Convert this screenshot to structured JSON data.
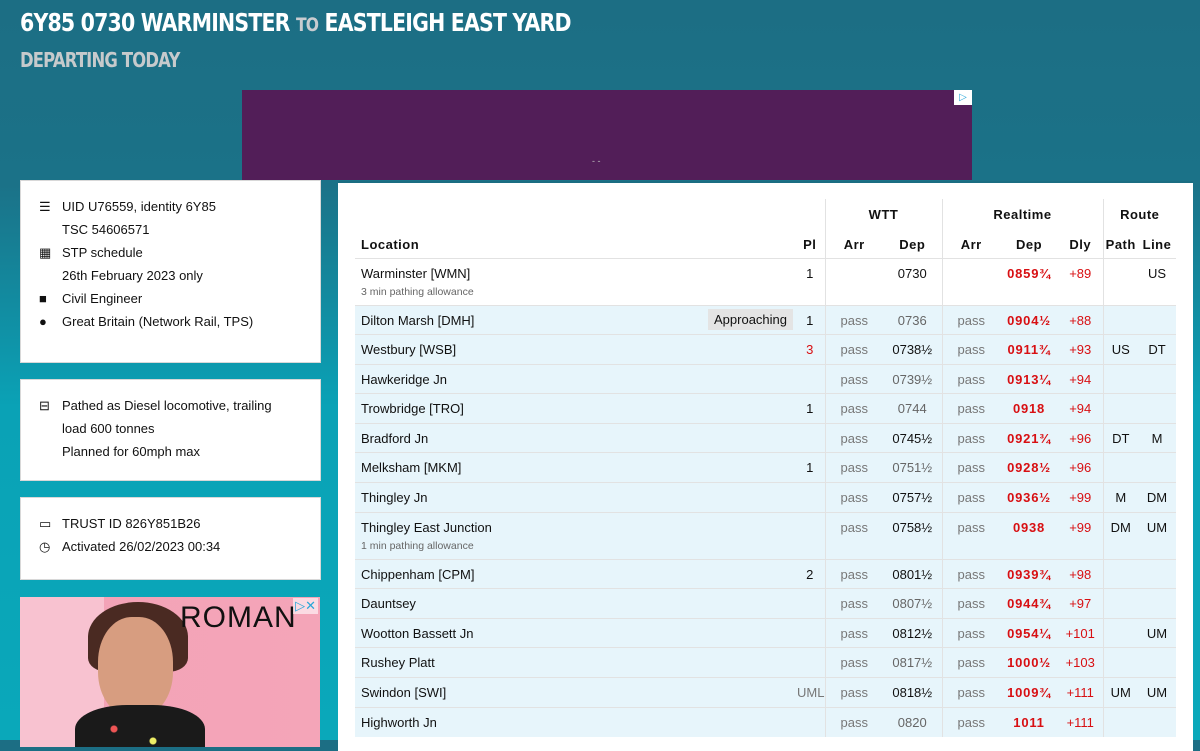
{
  "header": {
    "title_main": "6Y85 0730 WARMINSTER",
    "title_to": "TO",
    "title_dest": "EASTLEIGH EAST YARD",
    "subtitle": "DEPARTING TODAY"
  },
  "info": {
    "uid": "UID U76559, identity 6Y85",
    "tsc": "TSC 54606571",
    "stp": "STP schedule",
    "date": "26th February 2023 only",
    "sector": "Civil Engineer",
    "network": "Great Britain (Network Rail, TPS)",
    "pathed": "Pathed as Diesel locomotive, trailing",
    "load": "load 600 tonnes",
    "speed": "Planned for 60mph max",
    "trust": "TRUST ID 826Y851B26",
    "activated": "Activated 26/02/2023 00:34"
  },
  "ads": {
    "brand": "ROMAN"
  },
  "table": {
    "group_headers": {
      "wtt": "WTT",
      "realtime": "Realtime",
      "route": "Route"
    },
    "columns": {
      "location": "Location",
      "pl": "Pl",
      "arr": "Arr",
      "dep": "Dep",
      "rt_arr": "Arr",
      "rt_dep": "Dep",
      "dly": "Dly",
      "path": "Path",
      "line": "Line"
    },
    "rows": [
      {
        "location": "Warminster [WMN]",
        "note": "3 min pathing allowance",
        "pl": "1",
        "arr": "",
        "dep": "0730",
        "dep_timing": true,
        "rt_arr": "",
        "rt_dep": "0859¾",
        "dly": "+89",
        "path": "",
        "line": "US"
      },
      {
        "location": "Dilton Marsh [DMH]",
        "badge": "Approaching",
        "pl": "1",
        "arr": "pass",
        "dep": "0736",
        "dep_timing": false,
        "rt_arr": "pass",
        "rt_dep": "0904½",
        "dly": "+88",
        "path": "",
        "line": ""
      },
      {
        "location": "Westbury [WSB]",
        "pl": "3",
        "pl_changed": true,
        "arr": "pass",
        "dep": "0738½",
        "dep_timing": true,
        "rt_arr": "pass",
        "rt_dep": "0911¾",
        "dly": "+93",
        "path": "US",
        "line": "DT"
      },
      {
        "location": "Hawkeridge Jn",
        "pl": "",
        "arr": "pass",
        "dep": "0739½",
        "dep_timing": false,
        "rt_arr": "pass",
        "rt_dep": "0913¼",
        "dly": "+94",
        "path": "",
        "line": ""
      },
      {
        "location": "Trowbridge [TRO]",
        "pl": "1",
        "arr": "pass",
        "dep": "0744",
        "dep_timing": false,
        "rt_arr": "pass",
        "rt_dep": "0918",
        "dly": "+94",
        "path": "",
        "line": ""
      },
      {
        "location": "Bradford Jn",
        "pl": "",
        "arr": "pass",
        "dep": "0745½",
        "dep_timing": true,
        "rt_arr": "pass",
        "rt_dep": "0921¾",
        "dly": "+96",
        "path": "DT",
        "line": "M"
      },
      {
        "location": "Melksham [MKM]",
        "pl": "1",
        "arr": "pass",
        "dep": "0751½",
        "dep_timing": false,
        "rt_arr": "pass",
        "rt_dep": "0928½",
        "dly": "+96",
        "path": "",
        "line": ""
      },
      {
        "location": "Thingley Jn",
        "pl": "",
        "arr": "pass",
        "dep": "0757½",
        "dep_timing": true,
        "rt_arr": "pass",
        "rt_dep": "0936½",
        "dly": "+99",
        "path": "M",
        "line": "DM"
      },
      {
        "location": "Thingley East Junction",
        "note": "1 min pathing allowance",
        "pl": "",
        "arr": "pass",
        "dep": "0758½",
        "dep_timing": true,
        "rt_arr": "pass",
        "rt_dep": "0938",
        "dly": "+99",
        "path": "DM",
        "line": "UM"
      },
      {
        "location": "Chippenham [CPM]",
        "pl": "2",
        "arr": "pass",
        "dep": "0801½",
        "dep_timing": true,
        "rt_arr": "pass",
        "rt_dep": "0939¾",
        "dly": "+98",
        "path": "",
        "line": ""
      },
      {
        "location": "Dauntsey",
        "pl": "",
        "arr": "pass",
        "dep": "0807½",
        "dep_timing": false,
        "rt_arr": "pass",
        "rt_dep": "0944¾",
        "dly": "+97",
        "path": "",
        "line": ""
      },
      {
        "location": "Wootton Bassett Jn",
        "pl": "",
        "arr": "pass",
        "dep": "0812½",
        "dep_timing": true,
        "rt_arr": "pass",
        "rt_dep": "0954¼",
        "dly": "+101",
        "path": "",
        "line": "UM"
      },
      {
        "location": "Rushey Platt",
        "pl": "",
        "arr": "pass",
        "dep": "0817½",
        "dep_timing": false,
        "rt_arr": "pass",
        "rt_dep": "1000½",
        "dly": "+103",
        "path": "",
        "line": ""
      },
      {
        "location": "Swindon [SWI]",
        "pl": "UML",
        "pl_code": true,
        "arr": "pass",
        "dep": "0818½",
        "dep_timing": true,
        "rt_arr": "pass",
        "rt_dep": "1009¾",
        "dly": "+111",
        "path": "UM",
        "line": "UM"
      },
      {
        "location": "Highworth Jn",
        "pl": "",
        "arr": "pass",
        "dep": "0820",
        "dep_timing": false,
        "rt_arr": "pass",
        "rt_dep": "1011",
        "dly": "+111",
        "path": "",
        "line": ""
      }
    ]
  },
  "colors": {
    "background": "#1b7288",
    "delay": "#d80f12",
    "row_highlight": "#e7f5fb",
    "ad_purple": "#521e58"
  }
}
